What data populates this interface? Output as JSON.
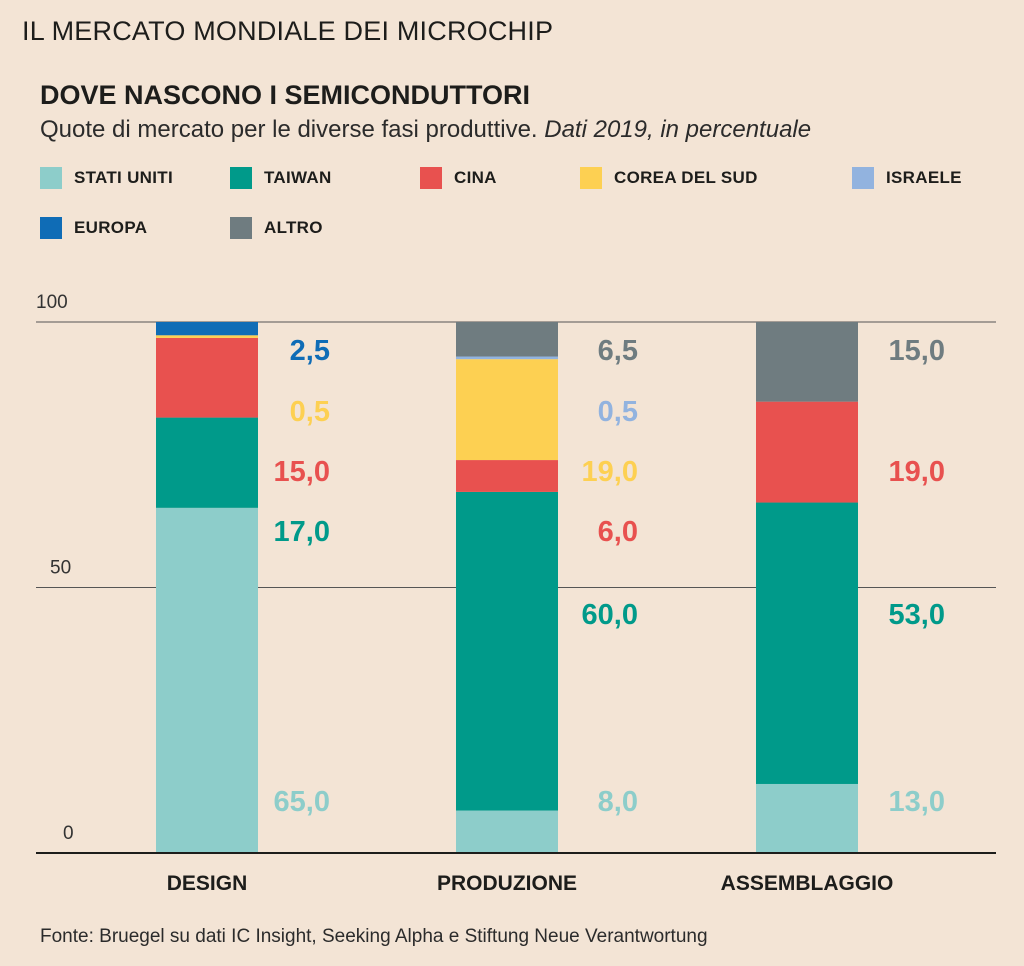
{
  "header": {
    "top_title": "IL MERCATO MONDIALE DEI MICROCHIP",
    "chart_title": "DOVE NASCONO I SEMICONDUTTORI",
    "subtitle_plain": "Quote di mercato per le diverse fasi produttive. ",
    "subtitle_italic": "Dati 2019, in percentuale"
  },
  "legend": [
    {
      "name": "STATI UNITI",
      "color": "#8dcdca"
    },
    {
      "name": "TAIWAN",
      "color": "#009a8a"
    },
    {
      "name": "CINA",
      "color": "#e8514f"
    },
    {
      "name": "COREA DEL SUD",
      "color": "#fdd052"
    },
    {
      "name": "ISRAELE",
      "color": "#92b3df"
    },
    {
      "name": "EUROPA",
      "color": "#0f6cb6"
    },
    {
      "name": "ALTRO",
      "color": "#6f7c80"
    }
  ],
  "source": "Fonte: Bruegel su dati IC Insight, Seeking Alpha e Stiftung Neue Verantwortung",
  "chart_data": {
    "type": "bar",
    "stacked": true,
    "categories": [
      "DESIGN",
      "PRODUZIONE",
      "ASSEMBLAGGIO"
    ],
    "ylim": [
      0,
      100
    ],
    "yticks": [
      {
        "value": 0,
        "label": "0"
      },
      {
        "value": 50,
        "label": "50"
      },
      {
        "value": 100,
        "label": "100"
      }
    ],
    "series": [
      {
        "name": "STATI UNITI",
        "color": "#8dcdca",
        "values": [
          65.0,
          8.0,
          13.0
        ],
        "labels": [
          "65,0",
          "8,0",
          "13,0"
        ]
      },
      {
        "name": "TAIWAN",
        "color": "#009a8a",
        "values": [
          17.0,
          60.0,
          53.0
        ],
        "labels": [
          "17,0",
          "60,0",
          "53,0"
        ]
      },
      {
        "name": "CINA",
        "color": "#e8514f",
        "values": [
          15.0,
          6.0,
          19.0
        ],
        "labels": [
          "15,0",
          "6,0",
          "19,0"
        ]
      },
      {
        "name": "COREA DEL SUD",
        "color": "#fdd052",
        "values": [
          0.5,
          19.0,
          0
        ],
        "labels": [
          "0,5",
          "19,0",
          null
        ]
      },
      {
        "name": "ISRAELE",
        "color": "#92b3df",
        "values": [
          0,
          0.5,
          0
        ],
        "labels": [
          null,
          "0,5",
          null
        ]
      },
      {
        "name": "EUROPA",
        "color": "#0f6cb6",
        "values": [
          2.5,
          0,
          0
        ],
        "labels": [
          "2,5",
          null,
          null
        ]
      },
      {
        "name": "ALTRO",
        "color": "#6f7c80",
        "values": [
          0,
          6.5,
          15.0
        ],
        "labels": [
          null,
          "6,5",
          "15,0"
        ]
      }
    ]
  }
}
